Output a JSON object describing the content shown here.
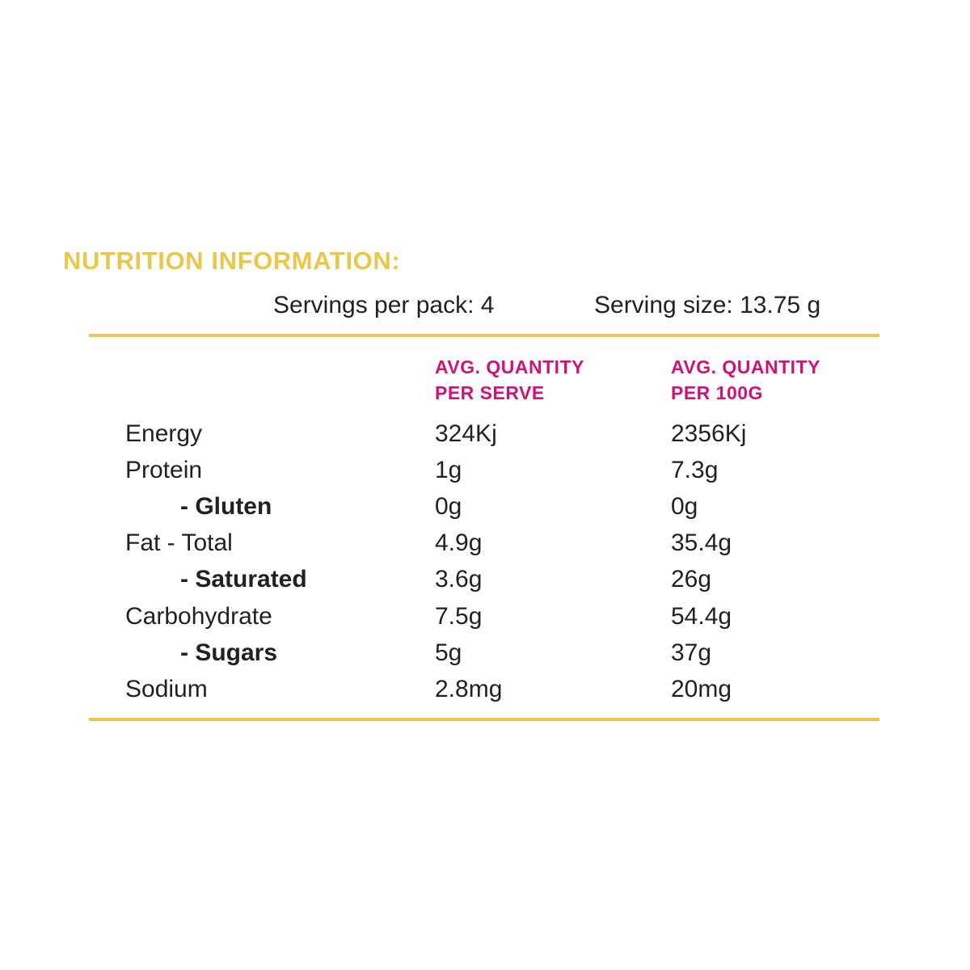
{
  "title": "NUTRITION INFORMATION:",
  "servings_line": {
    "servings_per_pack": "Servings per pack: 4",
    "serving_size": "Serving size: 13.75 g"
  },
  "table": {
    "headers": {
      "per_serve": [
        "AVG. QUANTITY",
        "PER SERVE"
      ],
      "per_100g": [
        "AVG. QUANTITY",
        "PER 100G"
      ]
    },
    "rows": [
      {
        "label": "Energy",
        "per_serve": "324Kj",
        "per_100g": "2356Kj"
      },
      {
        "label": "Protein",
        "per_serve": "1g",
        "per_100g": "7.3g"
      },
      {
        "label": "- Gluten",
        "per_serve": "0g",
        "per_100g": "0g"
      },
      {
        "label": "Fat - Total",
        "per_serve": "4.9g",
        "per_100g": "35.4g"
      },
      {
        "label": "- Saturated",
        "per_serve": "3.6g",
        "per_100g": "26g"
      },
      {
        "label": "Carbohydrate",
        "per_serve": "7.5g",
        "per_100g": "54.4g"
      },
      {
        "label": "- Sugars",
        "per_serve": "5g",
        "per_100g": "37g"
      },
      {
        "label": "Sodium",
        "per_serve": "2.8mg",
        "per_100g": "20mg"
      }
    ]
  },
  "colors": {
    "gold": "#e8c74a",
    "magenta": "#ce1279",
    "text": "#242021",
    "background": "#ffffff"
  }
}
